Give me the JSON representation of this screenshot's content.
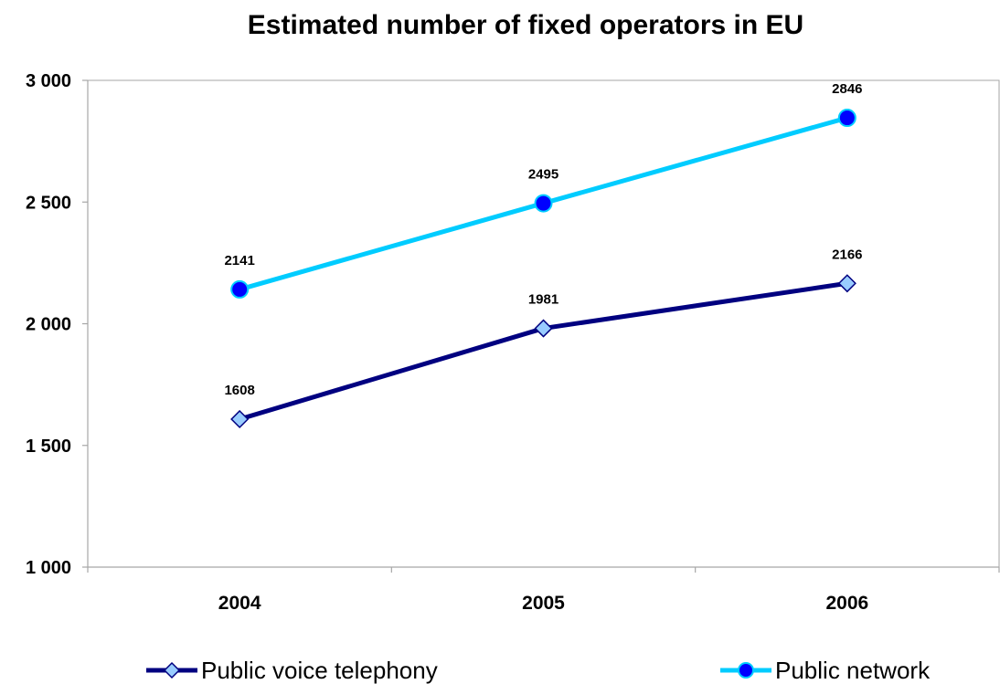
{
  "chart_data": {
    "type": "line",
    "title": "Estimated number of fixed operators in EU",
    "xlabel": "",
    "ylabel": "",
    "categories": [
      "2004",
      "2005",
      "2006"
    ],
    "ylim": [
      1000,
      3000
    ],
    "yticks": [
      1000,
      1500,
      2000,
      2500,
      3000
    ],
    "ytick_labels": [
      "1 000",
      "1 500",
      "2 000",
      "2 500",
      "3 000"
    ],
    "grid": false,
    "legend_position": "bottom",
    "series": [
      {
        "name": "Public voice telephony",
        "values": [
          1608,
          1981,
          2166
        ],
        "data_labels": [
          "1608",
          "1981",
          "2166"
        ],
        "marker": "diamond",
        "line_color": "#000080",
        "marker_fill": "#99CCFF",
        "marker_stroke": "#000080"
      },
      {
        "name": "Public network",
        "values": [
          2141,
          2495,
          2846
        ],
        "data_labels": [
          "2141",
          "2495",
          "2846"
        ],
        "marker": "circle",
        "line_color": "#00CCFF",
        "marker_fill": "#0000FF",
        "marker_stroke": "#00CCFF"
      }
    ]
  }
}
